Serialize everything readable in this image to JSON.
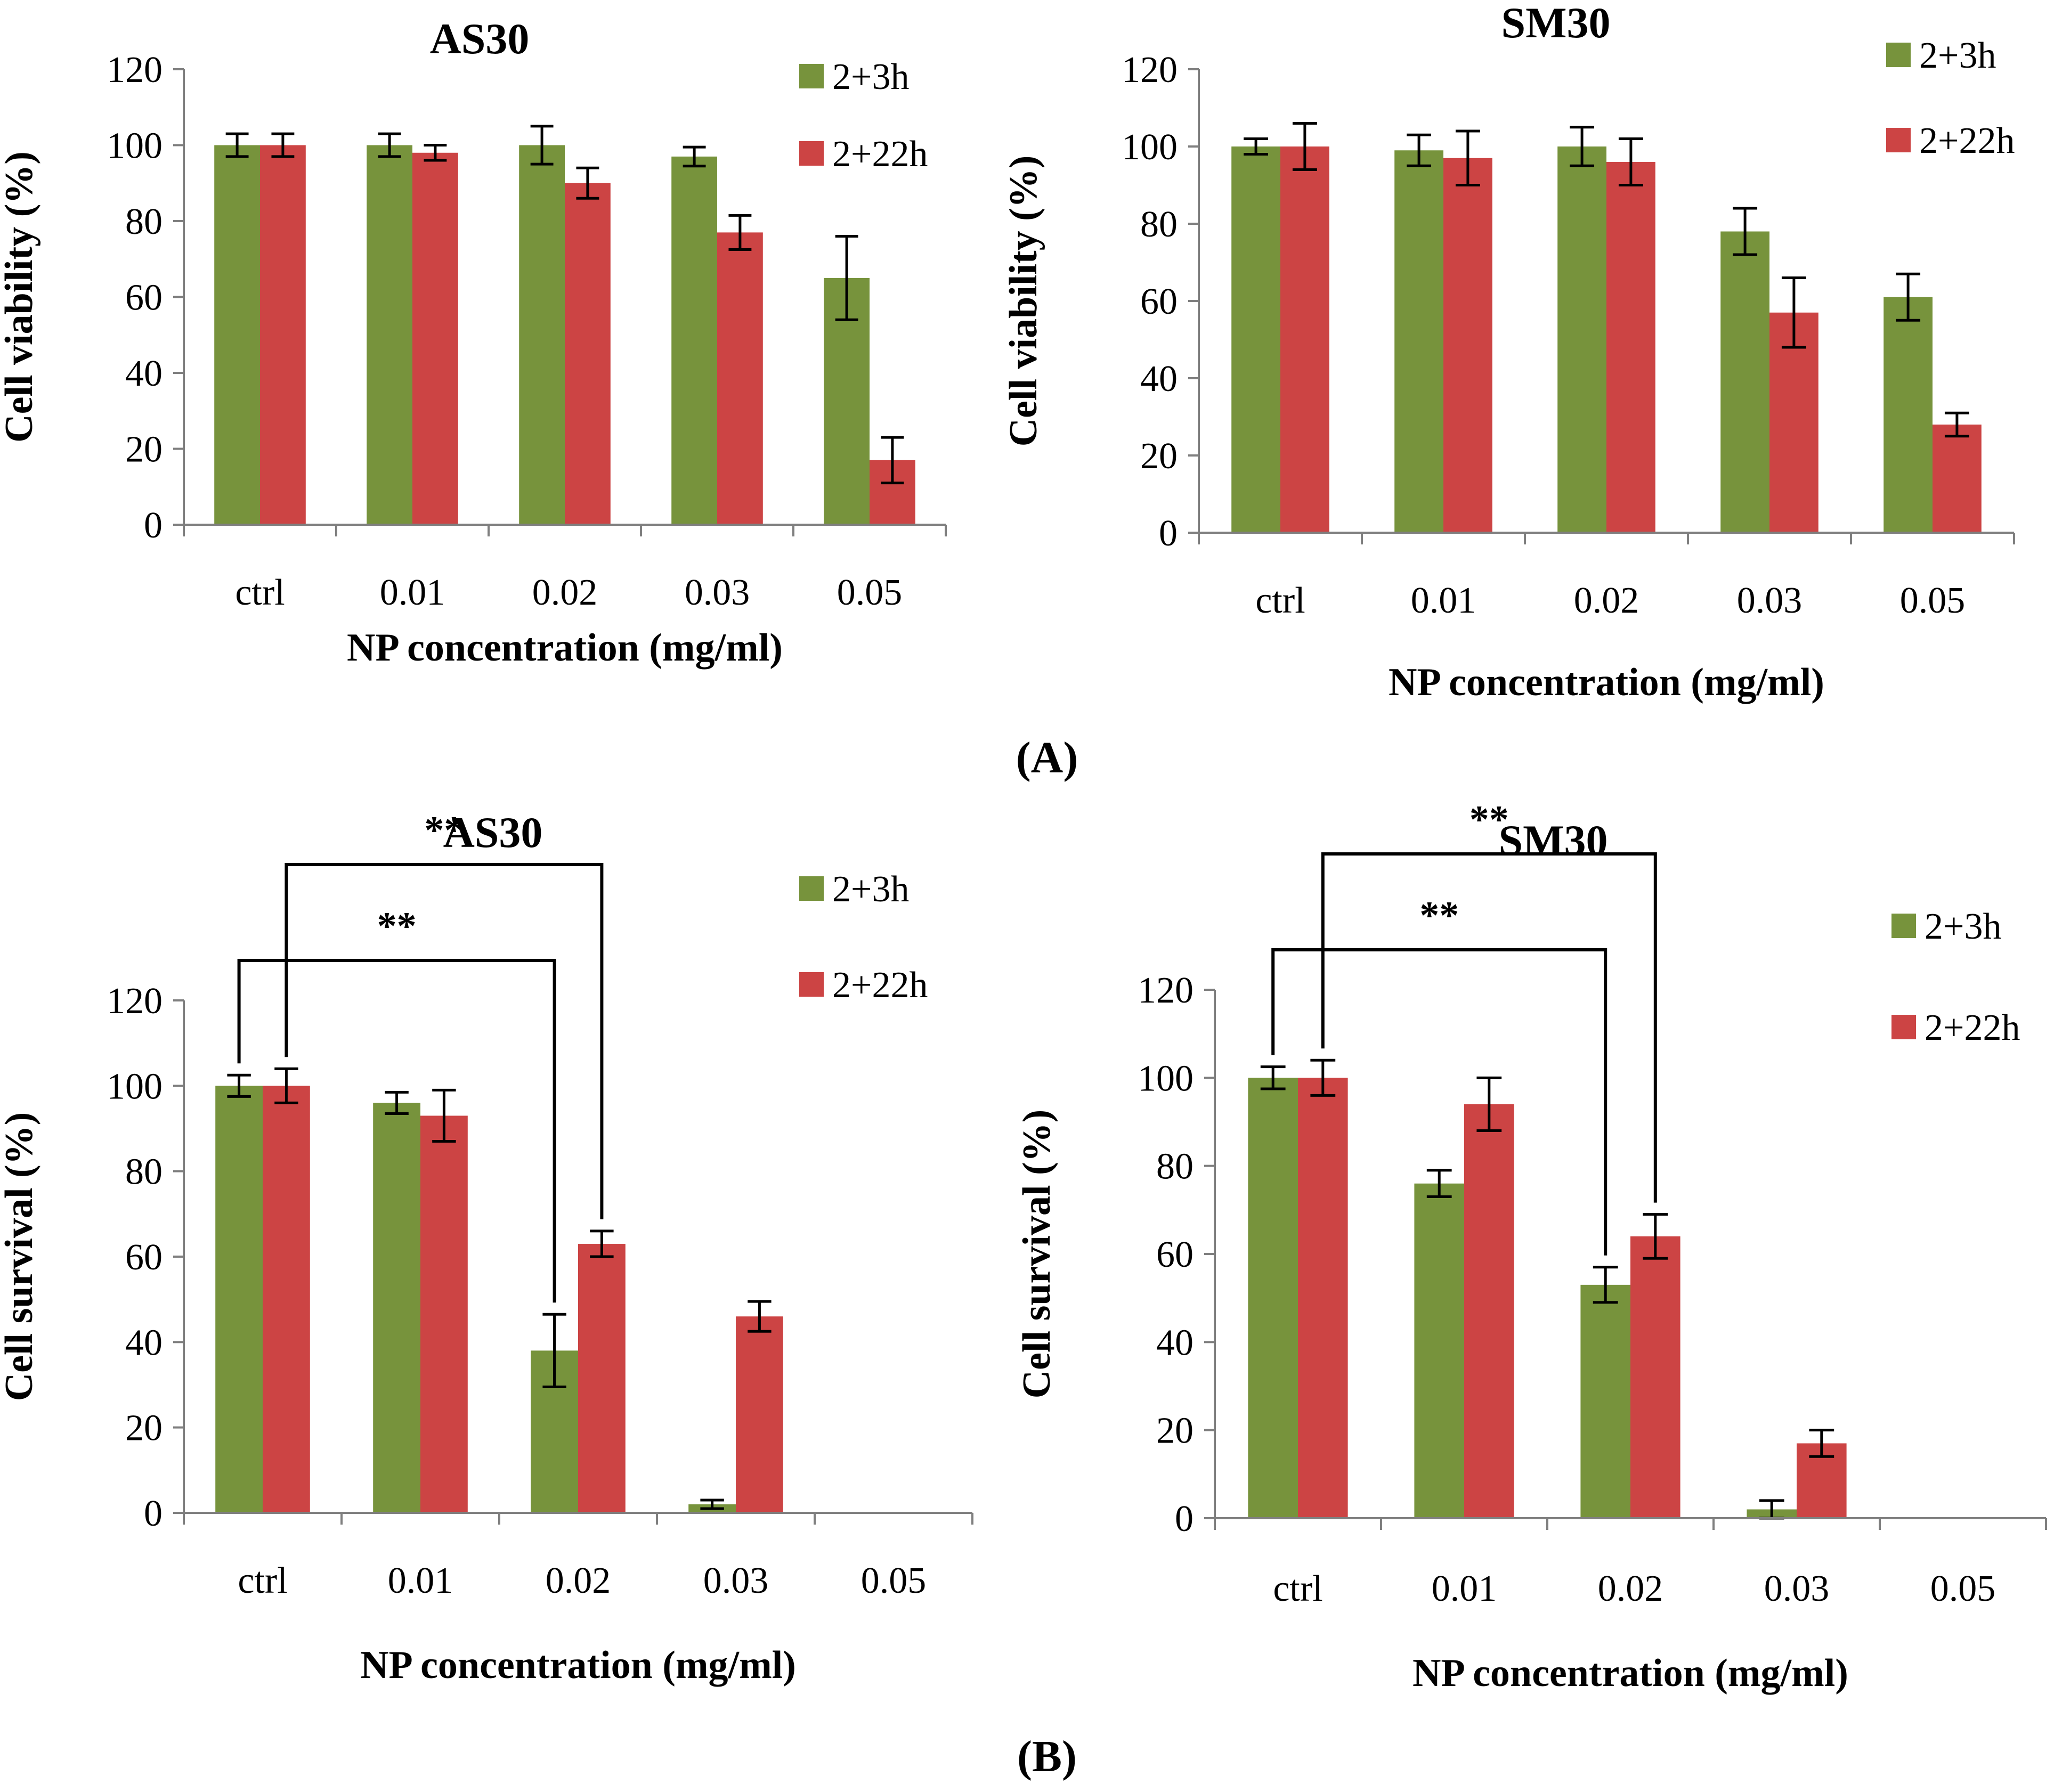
{
  "chart_data": [
    {
      "type": "bar",
      "panel": "A",
      "title": "AS30",
      "xlabel": "NP concentration (mg/ml)",
      "ylabel": "Cell viability (%)",
      "ylim": [
        0,
        120
      ],
      "yticks": [
        "0",
        "20",
        "40",
        "60",
        "80",
        "100",
        "120"
      ],
      "categories": [
        "ctrl",
        "0.01",
        "0.02",
        "0.03",
        "0.05"
      ],
      "legend_position": "top-right",
      "series": [
        {
          "name": "2+3h",
          "color": "#77933c",
          "values": [
            100,
            100,
            100,
            97,
            65
          ],
          "errors": [
            3,
            3,
            5,
            2.5,
            11
          ]
        },
        {
          "name": "2+22h",
          "color": "#cc4444",
          "values": [
            100,
            98,
            90,
            77,
            17
          ],
          "errors": [
            3,
            2,
            4,
            4.5,
            6
          ]
        }
      ],
      "significance": []
    },
    {
      "type": "bar",
      "panel": "A",
      "title": "SM30",
      "xlabel": "NP concentration (mg/ml)",
      "ylabel": "Cell viability (%)",
      "ylim": [
        0,
        120
      ],
      "yticks": [
        "0",
        "20",
        "40",
        "60",
        "80",
        "100",
        "120"
      ],
      "categories": [
        "ctrl",
        "0.01",
        "0.02",
        "0.03",
        "0.05"
      ],
      "legend_position": "top-right",
      "series": [
        {
          "name": "2+3h",
          "color": "#77933c",
          "values": [
            100,
            99,
            100,
            78,
            61
          ],
          "errors": [
            2,
            4,
            5,
            6,
            6
          ]
        },
        {
          "name": "2+22h",
          "color": "#cc4444",
          "values": [
            100,
            97,
            96,
            57,
            28
          ],
          "errors": [
            6,
            7,
            6,
            9,
            3
          ]
        }
      ],
      "significance": []
    },
    {
      "type": "bar",
      "panel": "B",
      "title": "AS30",
      "xlabel": "NP concentration (mg/ml)",
      "ylabel": "Cell survival (%)",
      "ylim": [
        0,
        120
      ],
      "yticks": [
        "0",
        "20",
        "40",
        "60",
        "80",
        "100",
        "120"
      ],
      "categories": [
        "ctrl",
        "0.01",
        "0.02",
        "0.03",
        "0.05"
      ],
      "legend_position": "top-right",
      "series": [
        {
          "name": "2+3h",
          "color": "#77933c",
          "values": [
            100,
            96,
            38,
            2,
            0
          ],
          "errors": [
            2.5,
            2.5,
            8.5,
            1,
            0
          ]
        },
        {
          "name": "2+22h",
          "color": "#cc4444",
          "values": [
            100,
            93,
            63,
            46,
            0
          ],
          "errors": [
            4,
            6,
            3,
            3.5,
            0
          ]
        }
      ],
      "significance": [
        {
          "label": "**",
          "from_series": 0,
          "from_category": 0,
          "to_series": 0,
          "to_category": 2
        },
        {
          "label": "**",
          "from_series": 1,
          "from_category": 0,
          "to_series": 1,
          "to_category": 2
        }
      ]
    },
    {
      "type": "bar",
      "panel": "B",
      "title": "SM30",
      "xlabel": "NP concentration (mg/ml)",
      "ylabel": "Cell survival (%)",
      "ylim": [
        0,
        120
      ],
      "yticks": [
        "0",
        "20",
        "40",
        "60",
        "80",
        "100",
        "120"
      ],
      "categories": [
        "ctrl",
        "0.01",
        "0.02",
        "0.03",
        "0.05"
      ],
      "legend_position": "top-right",
      "series": [
        {
          "name": "2+3h",
          "color": "#77933c",
          "values": [
            100,
            76,
            53,
            2,
            0
          ],
          "errors": [
            2.5,
            3,
            4,
            2,
            0
          ]
        },
        {
          "name": "2+22h",
          "color": "#cc4444",
          "values": [
            100,
            94,
            64,
            17,
            0
          ],
          "errors": [
            4,
            6,
            5,
            3,
            0
          ]
        }
      ],
      "significance": [
        {
          "label": "**",
          "from_series": 0,
          "from_category": 0,
          "to_series": 0,
          "to_category": 2
        },
        {
          "label": "**",
          "from_series": 1,
          "from_category": 0,
          "to_series": 1,
          "to_category": 2
        }
      ]
    }
  ],
  "panel_labels": {
    "a": "(A)",
    "b": "(B)"
  }
}
